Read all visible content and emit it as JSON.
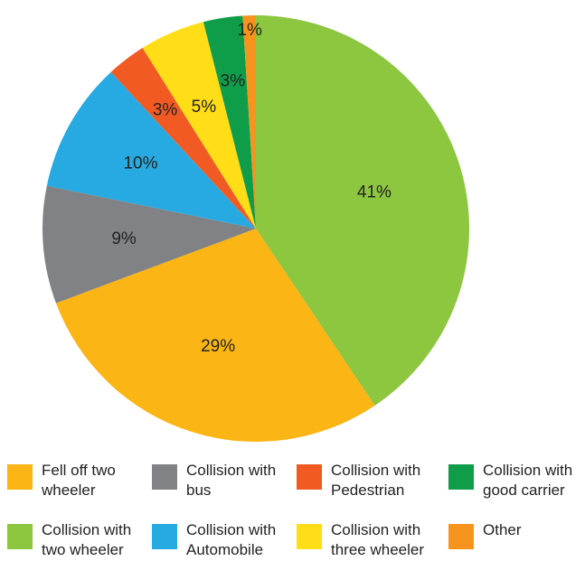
{
  "chart_data": {
    "type": "pie",
    "title": "",
    "slices": [
      {
        "label": "Collision with two wheeler",
        "value": 41,
        "display": "41%",
        "color": "#8DC63F"
      },
      {
        "label": "Fell off two wheeler",
        "value": 29,
        "display": "29%",
        "color": "#FBB514"
      },
      {
        "label": "Collision with bus",
        "value": 9,
        "display": "9%",
        "color": "#808285"
      },
      {
        "label": "Collision with Automobile",
        "value": 10,
        "display": "10%",
        "color": "#27AAE1"
      },
      {
        "label": "Collision with Pedestrian",
        "value": 3,
        "display": "3%",
        "color": "#F15A22"
      },
      {
        "label": "Collision with three wheeler",
        "value": 5,
        "display": "5%",
        "color": "#FFDE17"
      },
      {
        "label": "Collision with good carrier",
        "value": 3,
        "display": "3%",
        "color": "#0F9D4A"
      },
      {
        "label": "Other",
        "value": 1,
        "display": "1%",
        "color": "#F7941D"
      }
    ],
    "legend": {
      "position": "bottom",
      "items": [
        {
          "lines": [
            "Fell off two",
            "wheeler"
          ],
          "color": "#FBB514"
        },
        {
          "lines": [
            "Collision with",
            "bus"
          ],
          "color": "#808285"
        },
        {
          "lines": [
            "Collision with",
            "Pedestrian"
          ],
          "color": "#F15A22"
        },
        {
          "lines": [
            "Collision with",
            "good carrier"
          ],
          "color": "#0F9D4A"
        },
        {
          "lines": [
            "Collision with",
            "two wheeler"
          ],
          "color": "#8DC63F"
        },
        {
          "lines": [
            "Collision with",
            "Automobile"
          ],
          "color": "#27AAE1"
        },
        {
          "lines": [
            "Collision with",
            "three wheeler"
          ],
          "color": "#FFDE17"
        },
        {
          "lines": [
            "Other"
          ],
          "color": "#F7941D"
        }
      ]
    }
  }
}
